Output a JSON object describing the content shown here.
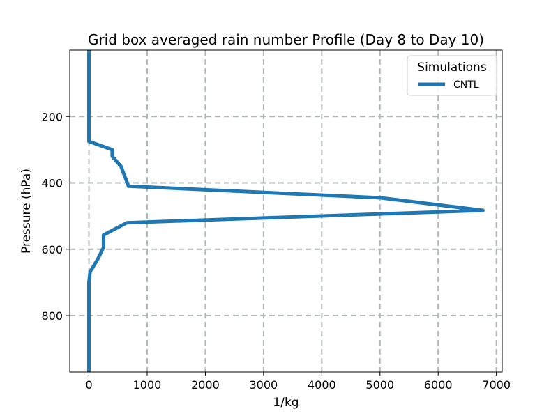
{
  "chart_data": {
    "type": "line",
    "title": "Grid box averaged rain number Profile (Day 8 to Day 10)",
    "xlabel": "1/kg",
    "ylabel": "Pressure (hPa)",
    "xlim": [
      -330,
      7100
    ],
    "ylim": [
      970,
      0
    ],
    "y_inverted": true,
    "grid": true,
    "x_ticks": [
      0,
      1000,
      2000,
      3000,
      4000,
      5000,
      6000,
      7000
    ],
    "y_ticks": [
      200,
      400,
      600,
      800
    ],
    "legend": {
      "title": "Simulations",
      "placement": "top-right",
      "entries": [
        "CNTL"
      ]
    },
    "series": [
      {
        "name": "CNTL",
        "color": "#1f77b4",
        "points": [
          [
            0,
            0
          ],
          [
            0,
            275
          ],
          [
            400,
            300
          ],
          [
            400,
            320
          ],
          [
            550,
            350
          ],
          [
            680,
            410
          ],
          [
            5000,
            445
          ],
          [
            6770,
            483
          ],
          [
            650,
            520
          ],
          [
            250,
            557
          ],
          [
            250,
            595
          ],
          [
            150,
            630
          ],
          [
            20,
            668
          ],
          [
            0,
            700
          ],
          [
            0,
            970
          ]
        ]
      }
    ]
  }
}
